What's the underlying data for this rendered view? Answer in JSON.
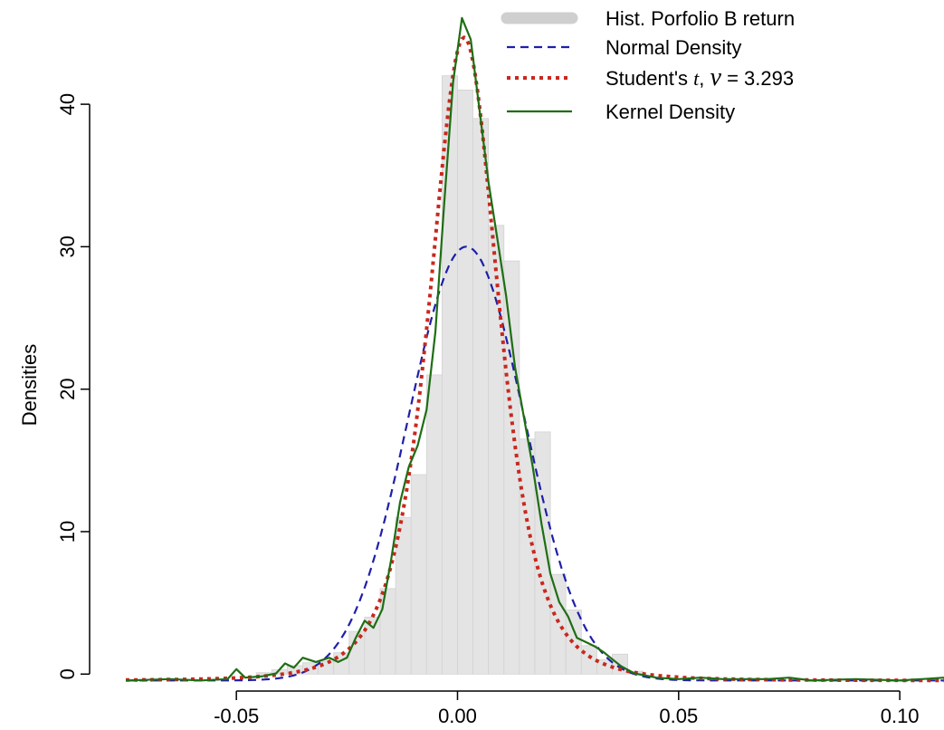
{
  "chart_data": {
    "type": "histogram_with_density",
    "title": "",
    "xlabel": "",
    "ylabel": "Densities",
    "xlim": [
      -0.075,
      0.11
    ],
    "ylim": [
      -1,
      47
    ],
    "xticks": [
      -0.05,
      0.0,
      0.05,
      0.1
    ],
    "xtick_labels": [
      "-0.05",
      "0.00",
      "0.05",
      "0.10"
    ],
    "yticks": [
      0,
      10,
      20,
      30,
      40
    ],
    "ytick_labels": [
      "0",
      "10",
      "20",
      "30",
      "40"
    ],
    "grid": false,
    "legend_position": "top-right",
    "legend": [
      {
        "label": "Hist. Porfolio B return",
        "style": "thick-gray"
      },
      {
        "label": "Normal Density",
        "style": "dashed-blue"
      },
      {
        "label_prefix": "Student's ",
        "label_italic": "t",
        "label_sep": ",  ",
        "label_symbol": "ν",
        "label_eq": " = ",
        "label_value": "3.293",
        "style": "dotted-red"
      },
      {
        "label": "Kernel Density",
        "style": "solid-green"
      }
    ],
    "histogram": {
      "bin_width": 0.0035,
      "bins": [
        {
          "x0": -0.0455,
          "y": 0.1
        },
        {
          "x0": -0.042,
          "y": 0.3
        },
        {
          "x0": -0.0385,
          "y": 0.6
        },
        {
          "x0": -0.035,
          "y": 0.8
        },
        {
          "x0": -0.0315,
          "y": 0.9
        },
        {
          "x0": -0.028,
          "y": 1.5
        },
        {
          "x0": -0.0245,
          "y": 3.0
        },
        {
          "x0": -0.021,
          "y": 4.0
        },
        {
          "x0": -0.0175,
          "y": 6.0
        },
        {
          "x0": -0.014,
          "y": 11.0
        },
        {
          "x0": -0.0105,
          "y": 14.0
        },
        {
          "x0": -0.007,
          "y": 21.0
        },
        {
          "x0": -0.0035,
          "y": 42.0
        },
        {
          "x0": 0.0,
          "y": 41.0
        },
        {
          "x0": 0.0035,
          "y": 39.0
        },
        {
          "x0": 0.007,
          "y": 31.5
        },
        {
          "x0": 0.0105,
          "y": 29.0
        },
        {
          "x0": 0.014,
          "y": 16.5
        },
        {
          "x0": 0.0175,
          "y": 17.0
        },
        {
          "x0": 0.021,
          "y": 7.0
        },
        {
          "x0": 0.0245,
          "y": 4.5
        },
        {
          "x0": 0.028,
          "y": 2.0
        },
        {
          "x0": 0.0315,
          "y": 1.0
        },
        {
          "x0": 0.035,
          "y": 1.4
        },
        {
          "x0": 0.0385,
          "y": 0.2
        }
      ]
    },
    "series": [
      {
        "kind": "normal",
        "mean": 0.002,
        "sd": 0.0131,
        "color": "#1f1fa8",
        "dash": "9,6"
      },
      {
        "kind": "student_t",
        "df": 3.293,
        "loc": 0.0015,
        "scale": 0.0082,
        "color": "#c8281e",
        "dash": "4,5"
      },
      {
        "kind": "kernel",
        "color": "#1e6e14",
        "points": [
          [
            -0.075,
            0.0
          ],
          [
            -0.065,
            0.1
          ],
          [
            -0.058,
            0.0
          ],
          [
            -0.052,
            0.1
          ],
          [
            -0.05,
            0.8
          ],
          [
            -0.048,
            0.2
          ],
          [
            -0.044,
            0.3
          ],
          [
            -0.041,
            0.5
          ],
          [
            -0.039,
            1.2
          ],
          [
            -0.037,
            0.9
          ],
          [
            -0.035,
            1.6
          ],
          [
            -0.032,
            1.3
          ],
          [
            -0.029,
            1.6
          ],
          [
            -0.027,
            1.3
          ],
          [
            -0.025,
            1.6
          ],
          [
            -0.023,
            3.0
          ],
          [
            -0.021,
            4.2
          ],
          [
            -0.019,
            3.7
          ],
          [
            -0.017,
            5.0
          ],
          [
            -0.015,
            8.5
          ],
          [
            -0.013,
            12.5
          ],
          [
            -0.011,
            15.0
          ],
          [
            -0.009,
            16.5
          ],
          [
            -0.007,
            19.0
          ],
          [
            -0.005,
            24.5
          ],
          [
            -0.003,
            33.5
          ],
          [
            -0.001,
            42.0
          ],
          [
            0.001,
            46.5
          ],
          [
            0.003,
            45.0
          ],
          [
            0.005,
            40.0
          ],
          [
            0.007,
            35.0
          ],
          [
            0.009,
            31.0
          ],
          [
            0.011,
            27.0
          ],
          [
            0.013,
            22.0
          ],
          [
            0.015,
            18.5
          ],
          [
            0.017,
            15.0
          ],
          [
            0.019,
            11.0
          ],
          [
            0.021,
            7.5
          ],
          [
            0.023,
            5.5
          ],
          [
            0.025,
            4.5
          ],
          [
            0.027,
            3.0
          ],
          [
            0.029,
            2.7
          ],
          [
            0.031,
            2.4
          ],
          [
            0.033,
            2.0
          ],
          [
            0.035,
            1.5
          ],
          [
            0.037,
            1.0
          ],
          [
            0.04,
            0.5
          ],
          [
            0.045,
            0.2
          ],
          [
            0.05,
            0.1
          ],
          [
            0.055,
            0.2
          ],
          [
            0.06,
            0.1
          ],
          [
            0.07,
            0.1
          ],
          [
            0.075,
            0.2
          ],
          [
            0.08,
            0.0
          ],
          [
            0.09,
            0.1
          ],
          [
            0.1,
            0.0
          ],
          [
            0.105,
            0.1
          ],
          [
            0.11,
            0.2
          ]
        ]
      }
    ]
  }
}
